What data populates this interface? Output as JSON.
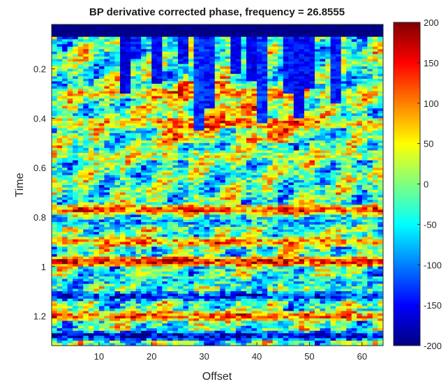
{
  "chart_data": {
    "type": "heatmap",
    "title": "BP derivative corrected phase, frequency = 26.8555",
    "xlabel": "Offset",
    "ylabel": "Time",
    "xlim": [
      1,
      64
    ],
    "ylim": [
      0.02,
      1.32
    ],
    "y_reversed": true,
    "xticks": [
      10,
      20,
      30,
      40,
      50,
      60
    ],
    "yticks": [
      0.2,
      0.4,
      0.6,
      0.8,
      1,
      1.2
    ],
    "colorbar": {
      "colormap": "jet",
      "range": [
        -200,
        200
      ],
      "ticks": [
        200,
        150,
        100,
        50,
        0,
        -50,
        -100,
        -150,
        -200
      ]
    },
    "features": {
      "top_band": {
        "time_range": [
          0.02,
          0.07
        ],
        "value": -200
      },
      "vertical_streaks": [
        {
          "offset": 15,
          "time_end": 0.3,
          "value": -160
        },
        {
          "offset": 17,
          "time_end": 0.16,
          "value": -140
        },
        {
          "offset": 21,
          "time_end": 0.26,
          "value": -150
        },
        {
          "offset": 26,
          "time_end": 0.18,
          "value": -150
        },
        {
          "offset": 29,
          "time_end": 0.45,
          "value": -130
        },
        {
          "offset": 31,
          "time_end": 0.36,
          "value": -140
        },
        {
          "offset": 36,
          "time_end": 0.22,
          "value": -150
        },
        {
          "offset": 39,
          "time_end": 0.25,
          "value": -160
        },
        {
          "offset": 41,
          "time_end": 0.42,
          "value": -130
        },
        {
          "offset": 46,
          "time_end": 0.3,
          "value": -140
        },
        {
          "offset": 48,
          "time_end": 0.4,
          "value": -150
        },
        {
          "offset": 50,
          "time_end": 0.28,
          "value": -150
        },
        {
          "offset": 55,
          "time_end": 0.34,
          "value": -140
        }
      ],
      "horizontal_bands": [
        {
          "time": 0.3,
          "value": 60
        },
        {
          "time": 0.42,
          "value": 80
        },
        {
          "time": 0.55,
          "value": 40
        },
        {
          "time": 0.77,
          "value": 150
        },
        {
          "time": 0.82,
          "value": -80
        },
        {
          "time": 0.9,
          "value": 120
        },
        {
          "time": 0.98,
          "value": 180
        },
        {
          "time": 1.06,
          "value": -60
        },
        {
          "time": 1.12,
          "value": -150
        },
        {
          "time": 1.2,
          "value": 130
        },
        {
          "time": 1.28,
          "value": -180
        }
      ]
    }
  }
}
